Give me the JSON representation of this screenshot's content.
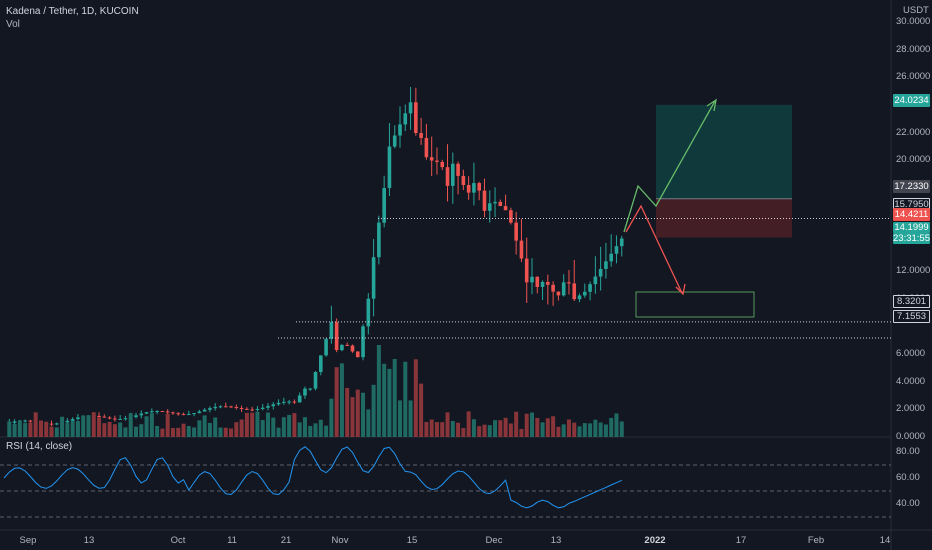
{
  "header": {
    "symbol_line": "Kadena / Tether, 1D, KUCOIN",
    "volume_label": "Vol"
  },
  "rsi": {
    "label": "RSI (14, close)"
  },
  "price_axis": {
    "currency": "USDT",
    "ticks": [
      "30.0000",
      "28.0000",
      "26.0000",
      "24.0000",
      "22.0000",
      "20.0000",
      "18.0000",
      "16.0000",
      "14.0000",
      "12.0000",
      "10.0000",
      "8.0000",
      "6.0000",
      "4.0000",
      "2.0000",
      "0.0000"
    ],
    "visible_ticks": [
      "30.0000",
      "28.0000",
      "26.0000",
      "22.0000",
      "20.0000",
      "18.0000",
      "12.0000",
      "10.0000",
      "6.0000",
      "4.0000",
      "2.0000",
      "0.0000"
    ]
  },
  "rsi_axis": {
    "ticks": [
      "80.00",
      "60.00",
      "40.00"
    ]
  },
  "price_tags": {
    "target": "24.0234",
    "entry": "17.2330",
    "level_1": "15.7950",
    "stop": "14.4211",
    "last_price": "14.1999",
    "countdown": "23:31:55",
    "support_1": "8.3201",
    "support_2": "7.1553"
  },
  "colors": {
    "background": "#131722",
    "up": "#26a69a",
    "down": "#ef5350",
    "rsi_line": "#2196f3",
    "target_zone": "#0f3d3e",
    "stop_zone": "#4a1f26",
    "up_arrow": "#66bb6a",
    "down_arrow": "#ef5350"
  },
  "time_axis": {
    "labels": [
      "Sep",
      "13",
      "Oct",
      "11",
      "21",
      "Nov",
      "15",
      "Dec",
      "13",
      "2022",
      "17",
      "Feb",
      "14"
    ],
    "bold": [
      "2022"
    ]
  }
}
